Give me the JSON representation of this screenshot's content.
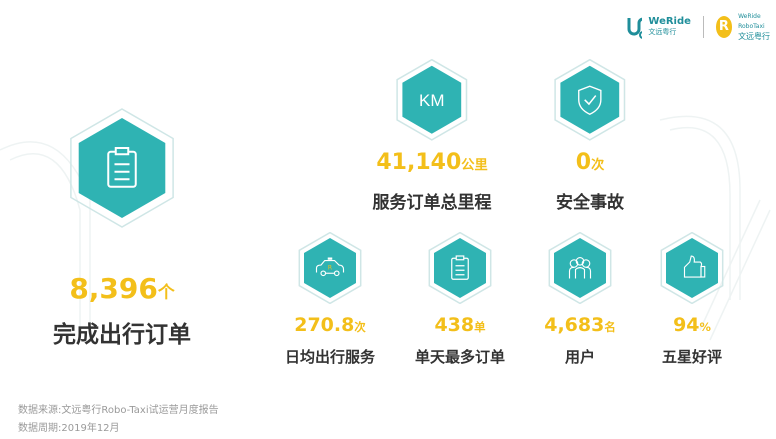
{
  "brand": {
    "logo1_text": "WeRide",
    "logo1_sub": "文远粤行",
    "logo2_text": "WeRide RoboTaxi",
    "logo2_sub": "文远粤行",
    "teal": "#2fb3b3",
    "yellow": "#f3bf1a"
  },
  "stats": [
    {
      "id": "orders",
      "value": "8,396",
      "unit": "个",
      "label": "完成出行订单",
      "icon": "clipboard-icon"
    },
    {
      "id": "mileage",
      "value": "41,140",
      "unit": "公里",
      "label": "服务订单总里程",
      "icon": "km-icon",
      "icon_text": "KM"
    },
    {
      "id": "safety",
      "value": "0",
      "unit": "次",
      "label": "安全事故",
      "icon": "shield-check-icon"
    },
    {
      "id": "daily",
      "value": "270.8",
      "unit": "次",
      "label": "日均出行服务",
      "icon": "taxi-icon"
    },
    {
      "id": "maxday",
      "value": "438",
      "unit": "单",
      "label": "单天最多订单",
      "icon": "clipboard-icon"
    },
    {
      "id": "users",
      "value": "4,683",
      "unit": "名",
      "label": "用户",
      "icon": "users-icon"
    },
    {
      "id": "rating",
      "value": "94",
      "unit": "%",
      "label": "五星好评",
      "icon": "thumbs-up-icon"
    }
  ],
  "footer": {
    "source": "数据来源:文远粤行Robo-Taxi试运营月度报告",
    "period": "数据周期:2019年12月"
  }
}
